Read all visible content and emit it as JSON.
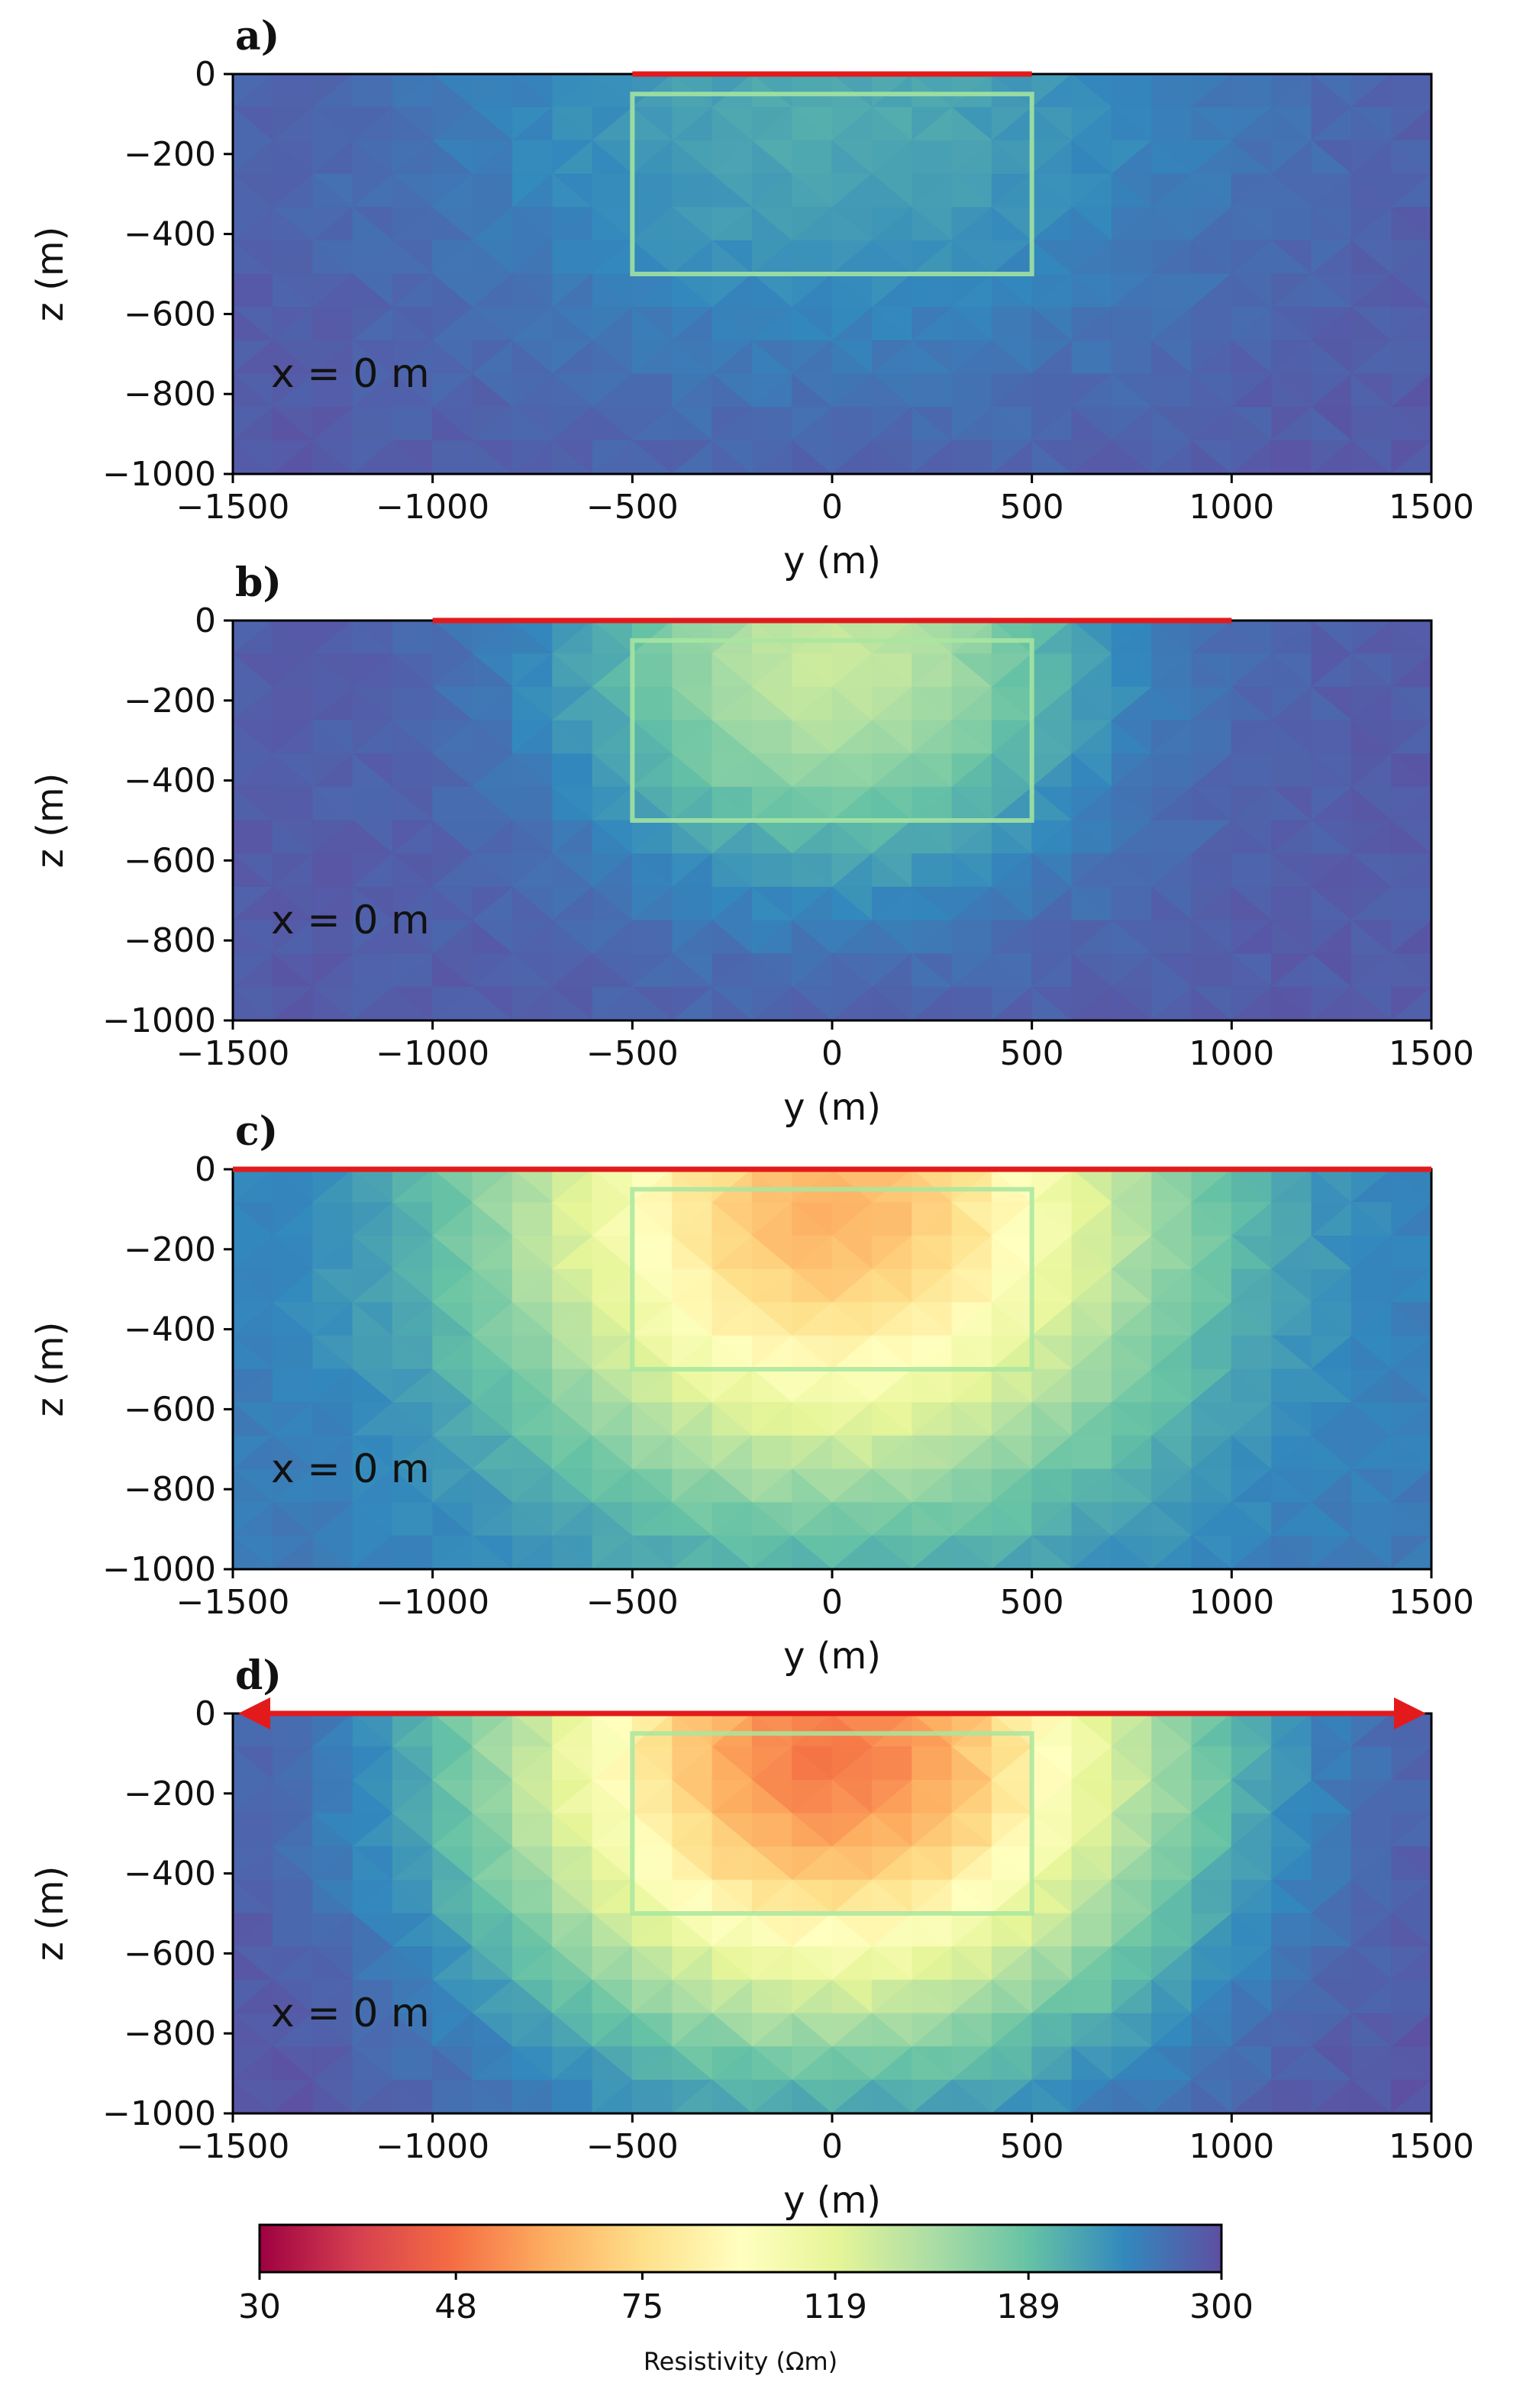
{
  "figure": {
    "colors": {
      "outline": "#a8e6a0",
      "array": "#e31a1c",
      "frame": "#000000",
      "background": "#ffffff"
    }
  },
  "chart_data": [
    {
      "type": "heatmap",
      "panel_label": "a)",
      "xlabel": "y (m)",
      "ylabel": "z (m)",
      "xlim": [
        -1500,
        1500
      ],
      "ylim": [
        -1000,
        0
      ],
      "xticks": [
        -1500,
        -1000,
        -500,
        0,
        500,
        1000,
        1500
      ],
      "yticks": [
        0,
        -200,
        -400,
        -600,
        -800,
        -1000
      ],
      "xtick_labels": [
        "−1500",
        "−1000",
        "−500",
        "0",
        "500",
        "1000",
        "1500"
      ],
      "ytick_labels": [
        "0",
        "−200",
        "−400",
        "−600",
        "−800",
        "−1000"
      ],
      "annotation": "x = 0 m",
      "target_box": {
        "y": [
          -500,
          500
        ],
        "z": [
          -500,
          -50
        ]
      },
      "array_line": {
        "y": [
          -500,
          500
        ],
        "z": 0,
        "arrows": false
      },
      "anomaly": {
        "center_y": 0,
        "center_z": -100,
        "peak_resistivity": 210,
        "background_resistivity": 290,
        "radius_y": 1300,
        "radius_z": 850
      }
    },
    {
      "type": "heatmap",
      "panel_label": "b)",
      "xlabel": "y (m)",
      "ylabel": "z (m)",
      "xlim": [
        -1500,
        1500
      ],
      "ylim": [
        -1000,
        0
      ],
      "xticks": [
        -1500,
        -1000,
        -500,
        0,
        500,
        1000,
        1500
      ],
      "yticks": [
        0,
        -200,
        -400,
        -600,
        -800,
        -1000
      ],
      "xtick_labels": [
        "−1500",
        "−1000",
        "−500",
        "0",
        "500",
        "1000",
        "1500"
      ],
      "ytick_labels": [
        "0",
        "−200",
        "−400",
        "−600",
        "−800",
        "−1000"
      ],
      "annotation": "x = 0 m",
      "target_box": {
        "y": [
          -500,
          500
        ],
        "z": [
          -500,
          -50
        ]
      },
      "array_line": {
        "y": [
          -1000,
          1000
        ],
        "z": 0,
        "arrows": false
      },
      "anomaly": {
        "center_y": 0,
        "center_z": -100,
        "peak_resistivity": 135,
        "background_resistivity": 285,
        "radius_y": 800,
        "radius_z": 650
      }
    },
    {
      "type": "heatmap",
      "panel_label": "c)",
      "xlabel": "y (m)",
      "ylabel": "z (m)",
      "xlim": [
        -1500,
        1500
      ],
      "ylim": [
        -1000,
        0
      ],
      "xticks": [
        -1500,
        -1000,
        -500,
        0,
        500,
        1000,
        1500
      ],
      "yticks": [
        0,
        -200,
        -400,
        -600,
        -800,
        -1000
      ],
      "xtick_labels": [
        "−1500",
        "−1000",
        "−500",
        "0",
        "500",
        "1000",
        "1500"
      ],
      "ytick_labels": [
        "0",
        "−200",
        "−400",
        "−600",
        "−800",
        "−1000"
      ],
      "annotation": "x = 0 m",
      "target_box": {
        "y": [
          -500,
          500
        ],
        "z": [
          -500,
          -50
        ]
      },
      "array_line": {
        "y": [
          -1500,
          1500
        ],
        "z": 0,
        "arrows": false
      },
      "anomaly": {
        "center_y": 0,
        "center_z": -100,
        "peak_resistivity": 62,
        "background_resistivity": 255,
        "radius_y": 1000,
        "radius_z": 850
      }
    },
    {
      "type": "heatmap",
      "panel_label": "d)",
      "xlabel": "y (m)",
      "ylabel": "z (m)",
      "xlim": [
        -1500,
        1500
      ],
      "ylim": [
        -1000,
        0
      ],
      "xticks": [
        -1500,
        -1000,
        -500,
        0,
        500,
        1000,
        1500
      ],
      "yticks": [
        0,
        -200,
        -400,
        -600,
        -800,
        -1000
      ],
      "xtick_labels": [
        "−1500",
        "−1000",
        "−500",
        "0",
        "500",
        "1000",
        "1500"
      ],
      "ytick_labels": [
        "0",
        "−200",
        "−400",
        "−600",
        "−800",
        "−1000"
      ],
      "annotation": "x = 0 m",
      "target_box": {
        "y": [
          -500,
          500
        ],
        "z": [
          -500,
          -50
        ]
      },
      "array_line": {
        "y": [
          -1500,
          1500
        ],
        "z": 0,
        "arrows": true
      },
      "anomaly": {
        "center_y": 0,
        "center_z": -100,
        "peak_resistivity": 50,
        "background_resistivity": 298,
        "radius_y": 1050,
        "radius_z": 880
      }
    }
  ],
  "colorbar": {
    "label": "Resistivity (Ωm)",
    "scale": "log",
    "range": [
      30,
      300
    ],
    "ticks": [
      30,
      48,
      75,
      119,
      189,
      300
    ],
    "tick_labels": [
      "30",
      "48",
      "75",
      "119",
      "189",
      "300"
    ],
    "colormap": "Spectral",
    "colormap_stops": [
      "#9e0142",
      "#d53e4f",
      "#f46d43",
      "#fdae61",
      "#fee08b",
      "#ffffbf",
      "#e6f598",
      "#abdda4",
      "#66c2a5",
      "#3288bd",
      "#5e4fa2"
    ]
  }
}
